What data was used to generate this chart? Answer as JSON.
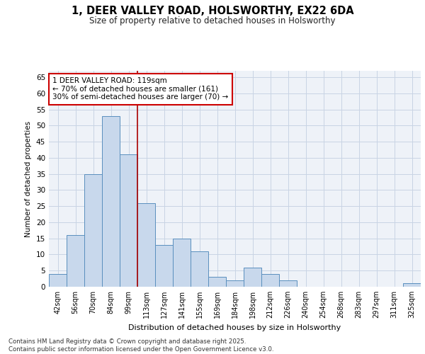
{
  "title_line1": "1, DEER VALLEY ROAD, HOLSWORTHY, EX22 6DA",
  "title_line2": "Size of property relative to detached houses in Holsworthy",
  "xlabel": "Distribution of detached houses by size in Holsworthy",
  "ylabel": "Number of detached properties",
  "categories": [
    "42sqm",
    "56sqm",
    "70sqm",
    "84sqm",
    "99sqm",
    "113sqm",
    "127sqm",
    "141sqm",
    "155sqm",
    "169sqm",
    "184sqm",
    "198sqm",
    "212sqm",
    "226sqm",
    "240sqm",
    "254sqm",
    "268sqm",
    "283sqm",
    "297sqm",
    "311sqm",
    "325sqm"
  ],
  "values": [
    4,
    16,
    35,
    53,
    41,
    26,
    13,
    15,
    11,
    3,
    2,
    6,
    4,
    2,
    0,
    0,
    0,
    0,
    0,
    0,
    1
  ],
  "bar_color": "#c8d8ec",
  "bar_edge_color": "#5a8fbe",
  "grid_color": "#c8d4e4",
  "background_color": "#eef2f8",
  "ylim": [
    0,
    67
  ],
  "yticks": [
    0,
    5,
    10,
    15,
    20,
    25,
    30,
    35,
    40,
    45,
    50,
    55,
    60,
    65
  ],
  "red_line_color": "#aa0000",
  "red_line_x": 4.5,
  "annotation_box_text": "1 DEER VALLEY ROAD: 119sqm\n← 70% of detached houses are smaller (161)\n30% of semi-detached houses are larger (70) →",
  "footer_line1": "Contains HM Land Registry data © Crown copyright and database right 2025.",
  "footer_line2": "Contains public sector information licensed under the Open Government Licence v3.0."
}
